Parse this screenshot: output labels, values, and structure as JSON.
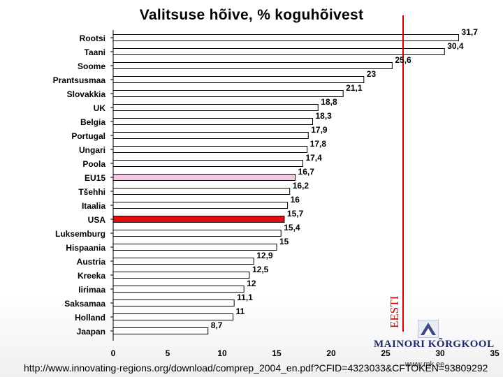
{
  "title": "Valitsuse hõive, % koguhõivest",
  "chart_data": {
    "type": "bar",
    "orientation": "horizontal",
    "categories": [
      "Rootsi",
      "Taani",
      "Soome",
      "Prantsusmaa",
      "Slovakkia",
      "UK",
      "Belgia",
      "Portugal",
      "Ungari",
      "Poola",
      "EU15",
      "Tšehhi",
      "Itaalia",
      "USA",
      "Luksemburg",
      "Hispaania",
      "Austria",
      "Kreeka",
      "Iirimaa",
      "Saksamaa",
      "Holland",
      "Jaapan"
    ],
    "values": [
      31.7,
      30.4,
      25.6,
      23,
      21.1,
      18.8,
      18.3,
      17.9,
      17.8,
      17.4,
      16.7,
      16.2,
      16,
      15.7,
      15.4,
      15,
      12.9,
      12.5,
      12,
      11.1,
      11,
      8.7
    ],
    "value_labels": [
      "31,7",
      "30,4",
      "25,6",
      "23",
      "21,1",
      "18,8",
      "18,3",
      "17,9",
      "17,8",
      "17,4",
      "16,7",
      "16,2",
      "16",
      "15,7",
      "15,4",
      "15",
      "12,9",
      "12,5",
      "12",
      "11,1",
      "11",
      "8,7"
    ],
    "highlight": {
      "USA": {
        "fill": "#e01010"
      },
      "EU15": {
        "fill": "#f6c6e6"
      }
    },
    "bar_fill": "#ffffff",
    "bar_stroke": "#000000",
    "xlim": [
      0,
      35
    ],
    "x_ticks": [
      0,
      5,
      10,
      15,
      20,
      25,
      30,
      35
    ],
    "x_tick_labels": [
      "0",
      "5",
      "10",
      "15",
      "20",
      "25",
      "30",
      "35"
    ],
    "reference_line": {
      "label": "EESTI",
      "color": "#cc0000"
    },
    "grid": true,
    "legend": "none"
  },
  "footer": {
    "logo": "MAINORI KÕRGKOOL",
    "website": "www.mk.ee",
    "source": "http://www.innovating-regions.org/download/comprep_2004_en.pdf?CFID=4323033&CFTOKEN=93809292"
  },
  "colors": {
    "eesti_line": "#cc0000",
    "logo": "#1f2a6b"
  }
}
